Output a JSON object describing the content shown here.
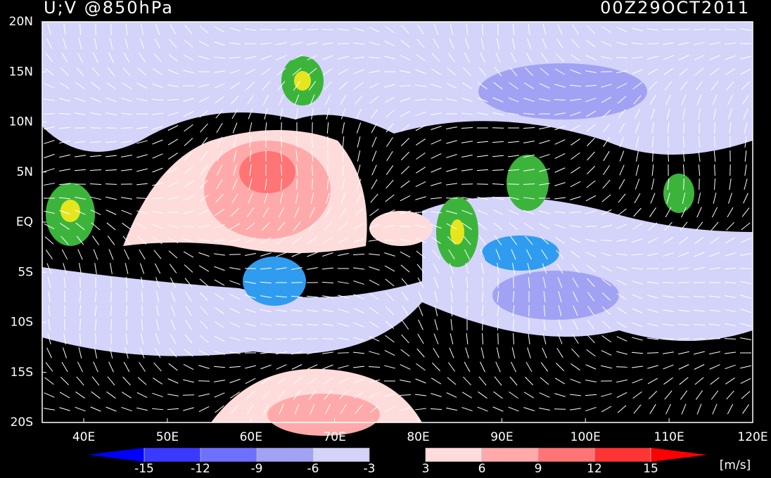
{
  "header": {
    "title": "U;V @850hPa",
    "time": "00Z29OCT2011"
  },
  "map": {
    "lat_labels": [
      "20N",
      "15N",
      "10N",
      "5N",
      "EQ",
      "5S",
      "10S",
      "15S",
      "20S"
    ],
    "lon_labels": [
      "40E",
      "50E",
      "60E",
      "70E",
      "80E",
      "90E",
      "100E",
      "110E",
      "120E"
    ]
  },
  "colorbar": {
    "levels": [
      -15,
      -12,
      -9,
      -6,
      -3,
      3,
      6,
      9,
      12,
      15
    ],
    "colors": [
      "#0000ff",
      "#3a3aff",
      "#7070ff",
      "#a2a2f4",
      "#d4d4fa",
      "#000000",
      "#ffdcdc",
      "#ffaaaa",
      "#ff7474",
      "#ff3434",
      "#ff0000"
    ],
    "unit": "[m/s]"
  }
}
